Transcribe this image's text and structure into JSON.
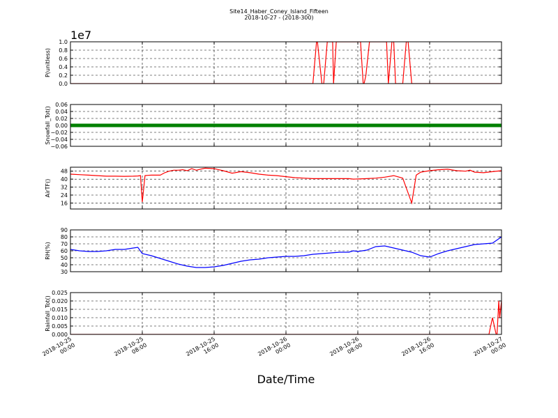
{
  "figure": {
    "title_line1": "Site14_Haber_Coney_Island_Fifteen",
    "title_line2": "2018-10-27 - (2018-300)",
    "xlabel": "Date/Time"
  },
  "chart_data": [
    {
      "type": "line",
      "ylabel": "P(unitless)",
      "offset_label": "1e7",
      "ylim": [
        0,
        1.0
      ],
      "yticks": [
        "0.0",
        "0.2",
        "0.4",
        "0.6",
        "0.8",
        "1.0"
      ],
      "ytick_values": [
        0,
        0.2,
        0.4,
        0.6,
        0.8,
        1.0
      ],
      "xlim": [
        0,
        48
      ],
      "grid": true,
      "color": "#ff0000",
      "x": [
        0,
        27.0,
        27.4,
        27.5,
        28.0,
        28.2,
        28.6,
        29.2,
        29.3,
        29.6,
        29.8,
        30.0,
        32.3,
        32.6,
        32.7,
        32.9,
        33.3,
        35.2,
        35.4,
        35.8,
        36.0,
        36.2,
        36.8,
        37.0,
        37.4,
        37.6,
        38.0,
        48
      ],
      "values": [
        0,
        0,
        1.0,
        1.0,
        0,
        0,
        1.0,
        1.0,
        0,
        1.0,
        1.0,
        1.0,
        1.0,
        0,
        0,
        0.2,
        1.0,
        1.0,
        0,
        1.0,
        1.0,
        0,
        0,
        0,
        1.0,
        1.0,
        0,
        0
      ]
    },
    {
      "type": "scatter",
      "ylabel": "Snowfall_Tot()",
      "ylim": [
        -0.06,
        0.06
      ],
      "yticks": [
        "−0.06",
        "−0.04",
        "−0.02",
        "0.00",
        "0.02",
        "0.04",
        "0.06"
      ],
      "ytick_values": [
        -0.06,
        -0.04,
        -0.02,
        0,
        0.02,
        0.04,
        0.06
      ],
      "xlim": [
        0,
        48
      ],
      "grid": true,
      "color": "#008000",
      "x": [
        0,
        48
      ],
      "values": [
        0,
        0
      ]
    },
    {
      "type": "line",
      "ylabel": "AirTF()",
      "ylim": [
        10,
        52
      ],
      "yticks": [
        "16",
        "24",
        "32",
        "40",
        "48"
      ],
      "ytick_values": [
        16,
        24,
        32,
        40,
        48
      ],
      "xlim": [
        0,
        48
      ],
      "grid": true,
      "color": "#ff0000",
      "x": [
        0,
        1,
        2,
        3,
        4,
        5,
        6,
        7,
        7.5,
        7.8,
        8.0,
        8.3,
        8.6,
        9.0,
        9.5,
        10,
        10.5,
        11,
        11.5,
        12,
        12.5,
        13,
        13.5,
        14,
        15,
        16,
        16.5,
        17,
        18,
        19,
        20,
        21,
        22,
        23,
        24,
        25,
        26,
        27,
        28,
        29,
        30,
        31,
        31.5,
        32,
        33,
        34,
        35,
        36,
        37,
        38,
        38.5,
        39,
        40,
        41,
        42,
        43,
        44,
        44.5,
        45,
        46,
        47,
        48
      ],
      "values": [
        45,
        44.5,
        44,
        43.5,
        43,
        43,
        42.8,
        43,
        43.2,
        43.5,
        17,
        43.5,
        43.8,
        44,
        44,
        44,
        46.5,
        48,
        49,
        49,
        49.5,
        48.5,
        50.5,
        49,
        51,
        50.5,
        49.5,
        48.5,
        46,
        47.5,
        46.5,
        45,
        44,
        43.5,
        42.5,
        41.5,
        41,
        40.5,
        40.5,
        40.5,
        40.5,
        40.5,
        40,
        40.2,
        40.5,
        41,
        42,
        43.5,
        41,
        16,
        44,
        47,
        48.5,
        49.5,
        50,
        48.5,
        48,
        49,
        47,
        46.5,
        47.5,
        48.5
      ]
    },
    {
      "type": "line",
      "ylabel": "RH(%)",
      "ylim": [
        30,
        90
      ],
      "yticks": [
        "30",
        "40",
        "50",
        "60",
        "70",
        "80",
        "90"
      ],
      "ytick_values": [
        30,
        40,
        50,
        60,
        70,
        80,
        90
      ],
      "xlim": [
        0,
        48
      ],
      "grid": true,
      "color": "#0000ff",
      "x": [
        0,
        1,
        2,
        3,
        4,
        5,
        6,
        7,
        7.5,
        8,
        9,
        10,
        11,
        12,
        13,
        14,
        15,
        16,
        17,
        18,
        19,
        20,
        21,
        22,
        23,
        24,
        25,
        26,
        27,
        28,
        29,
        30,
        30.5,
        31,
        31.5,
        32,
        33,
        34,
        35,
        36,
        37,
        38,
        39,
        40,
        41,
        42,
        43,
        44,
        45,
        46,
        47,
        48
      ],
      "values": [
        62,
        60,
        59,
        59,
        60,
        62,
        62,
        64,
        65,
        56,
        53,
        49,
        45,
        41,
        38,
        36,
        36,
        37,
        39,
        42,
        45,
        47,
        48,
        50,
        51,
        52,
        52,
        53,
        55,
        56,
        57,
        58,
        58,
        58,
        60,
        59,
        61,
        66,
        67,
        64,
        61,
        58,
        53,
        51,
        56,
        60,
        63,
        66,
        69,
        70,
        71,
        80
      ]
    },
    {
      "type": "line",
      "ylabel": "Rainfall_Tot()",
      "ylim": [
        0,
        0.025
      ],
      "yticks": [
        "0.000",
        "0.005",
        "0.010",
        "0.015",
        "0.020",
        "0.025"
      ],
      "ytick_values": [
        0,
        0.005,
        0.01,
        0.015,
        0.02,
        0.025
      ],
      "xlim": [
        0,
        48
      ],
      "grid": true,
      "color": "#ff0000",
      "x": [
        0,
        46.6,
        46.8,
        47.0,
        47.4,
        47.5,
        47.7,
        47.8,
        48
      ],
      "values": [
        0,
        0,
        0.005,
        0.01,
        0,
        0,
        0.02,
        0.01,
        0.02
      ]
    }
  ],
  "xticks": [
    [
      "2018-10-25",
      "00:00"
    ],
    [
      "2018-10-25",
      "08:00"
    ],
    [
      "2018-10-25",
      "16:00"
    ],
    [
      "2018-10-26",
      "00:00"
    ],
    [
      "2018-10-26",
      "08:00"
    ],
    [
      "2018-10-26",
      "16:00"
    ],
    [
      "2018-10-27",
      "00:00"
    ]
  ],
  "xtick_values": [
    0,
    8,
    16,
    24,
    32,
    40,
    48
  ]
}
